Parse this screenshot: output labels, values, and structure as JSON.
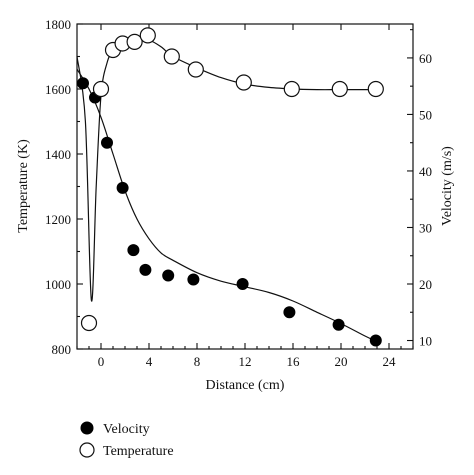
{
  "chart_data": {
    "type": "scatter",
    "xlabel": "Distance (cm)",
    "ylabel_left": "Temperature (K)",
    "ylabel_right": "Velocity (m/s)",
    "xlim": [
      -2,
      26
    ],
    "ylim_left": [
      800,
      1800
    ],
    "ylim_right": [
      8.5,
      66
    ],
    "x_ticks": [
      0,
      4,
      8,
      12,
      16,
      20,
      24
    ],
    "y_left_ticks": [
      800,
      1000,
      1200,
      1400,
      1600,
      1800
    ],
    "y_right_ticks": [
      10,
      20,
      30,
      40,
      50,
      60
    ],
    "grid": false,
    "legend_position": "bottom-left",
    "series": [
      {
        "name": "Velocity",
        "axis": "right",
        "marker": "filled-circle",
        "x": [
          -1.5,
          -0.5,
          0.5,
          1.8,
          2.7,
          3.7,
          5.6,
          7.7,
          11.8,
          15.7,
          19.8,
          22.9
        ],
        "y": [
          55.5,
          53.0,
          45.0,
          37.0,
          26.0,
          22.5,
          21.5,
          20.8,
          20.0,
          15.0,
          12.8,
          10.0
        ]
      },
      {
        "name": "Temperature",
        "axis": "left",
        "marker": "open-circle",
        "x": [
          -1.0,
          0.0,
          1.0,
          1.8,
          2.8,
          3.9,
          5.9,
          7.9,
          11.9,
          15.9,
          19.9,
          22.9
        ],
        "y": [
          880,
          1600,
          1720,
          1740,
          1745,
          1765,
          1700,
          1660,
          1620,
          1600,
          1600,
          1600
        ]
      }
    ],
    "fit_curves": [
      {
        "for": "Temperature",
        "axis": "left",
        "x": [
          -2,
          -1.3,
          -0.8,
          -0.4,
          0,
          0.5,
          1,
          2,
          3,
          4,
          5,
          6,
          8,
          10,
          12,
          14,
          16,
          18,
          20,
          23
        ],
        "y": [
          1700,
          1500,
          950,
          1300,
          1580,
          1680,
          1715,
          1735,
          1745,
          1750,
          1730,
          1700,
          1665,
          1635,
          1615,
          1605,
          1600,
          1598,
          1598,
          1598
        ]
      },
      {
        "for": "Velocity",
        "axis": "right",
        "x": [
          -2,
          -1,
          0,
          1,
          2,
          3,
          4,
          5,
          6,
          8,
          10,
          12,
          14,
          16,
          18,
          20,
          22,
          23
        ],
        "y": [
          58,
          54.5,
          49.5,
          43.0,
          36.5,
          31.5,
          28.0,
          25.5,
          24.2,
          22.0,
          20.5,
          19.5,
          18.5,
          17.0,
          15.0,
          13.0,
          10.8,
          9.8
        ]
      }
    ],
    "legend": [
      {
        "label": "Velocity",
        "marker": "filled-circle"
      },
      {
        "label": "Temperature",
        "marker": "open-circle"
      }
    ]
  }
}
